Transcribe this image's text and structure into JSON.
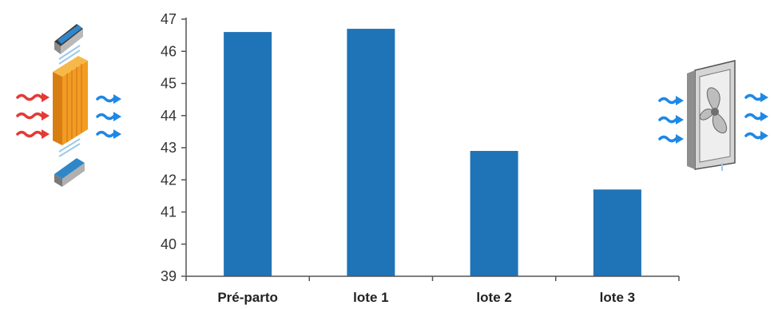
{
  "chart_data": {
    "type": "bar",
    "categories": [
      "Pré-parto",
      "lote 1",
      "lote 2",
      "lote 3"
    ],
    "values": [
      46.6,
      46.7,
      42.9,
      41.7
    ],
    "yticks": [
      39,
      40,
      41,
      42,
      43,
      44,
      45,
      46,
      47
    ],
    "ylim": [
      39,
      47
    ],
    "title": "",
    "xlabel": "",
    "ylabel": "",
    "grid": false,
    "legend": "none",
    "colors": {
      "bar": "#1f73b7",
      "axis": "#555555"
    }
  },
  "illustrations": {
    "left": "evaporative-cooling-pad-illustration",
    "right": "exhaust-fan-illustration",
    "colors": {
      "hot_air": "#e53935",
      "cool_air": "#1e88e5",
      "pad": "#f39c23"
    }
  }
}
